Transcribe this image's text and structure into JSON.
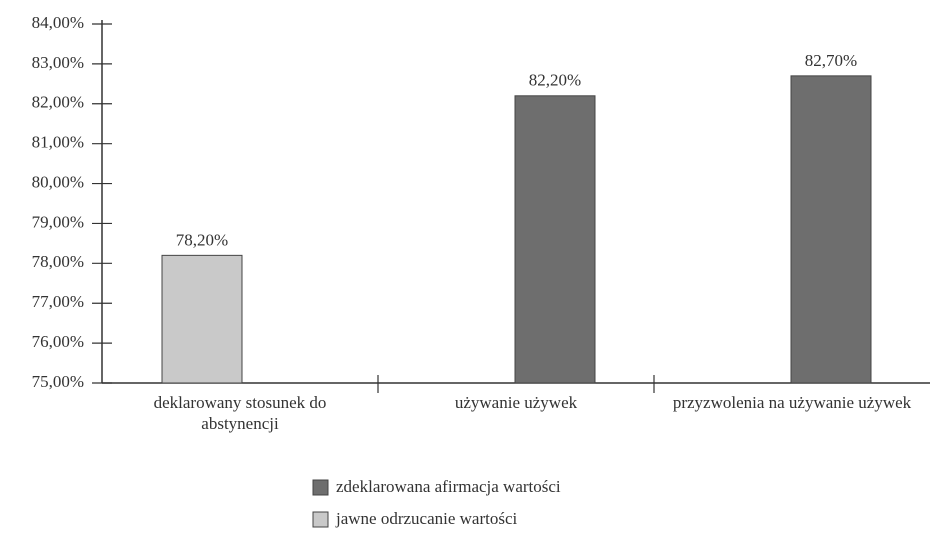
{
  "chart_data": {
    "type": "bar",
    "categories": [
      "deklarowany stosunek do abstynencji",
      "używanie używek",
      "przyzwolenia na używanie używek"
    ],
    "series": [
      {
        "name": "zdeklarowana afirmacja wartości",
        "color": "#6e6e6e",
        "values": [
          null,
          82.2,
          82.7
        ],
        "value_labels": [
          null,
          "82,20%",
          "82,70%"
        ]
      },
      {
        "name": "jawne odrzucanie wartości",
        "color": "#c9c9c9",
        "values": [
          78.2,
          null,
          null
        ],
        "value_labels": [
          "78,20%",
          null,
          null
        ]
      }
    ],
    "ylim": [
      75,
      84
    ],
    "yticks": [
      {
        "value": 75,
        "label": "75,00%"
      },
      {
        "value": 76,
        "label": "76,00%"
      },
      {
        "value": 77,
        "label": "77,00%"
      },
      {
        "value": 78,
        "label": "78,00%"
      },
      {
        "value": 79,
        "label": "79,00%"
      },
      {
        "value": 80,
        "label": "80,00%"
      },
      {
        "value": 81,
        "label": "81,00%"
      },
      {
        "value": 82,
        "label": "82,00%"
      },
      {
        "value": 83,
        "label": "83,00%"
      },
      {
        "value": 84,
        "label": "84,00%"
      }
    ],
    "grid": false
  }
}
